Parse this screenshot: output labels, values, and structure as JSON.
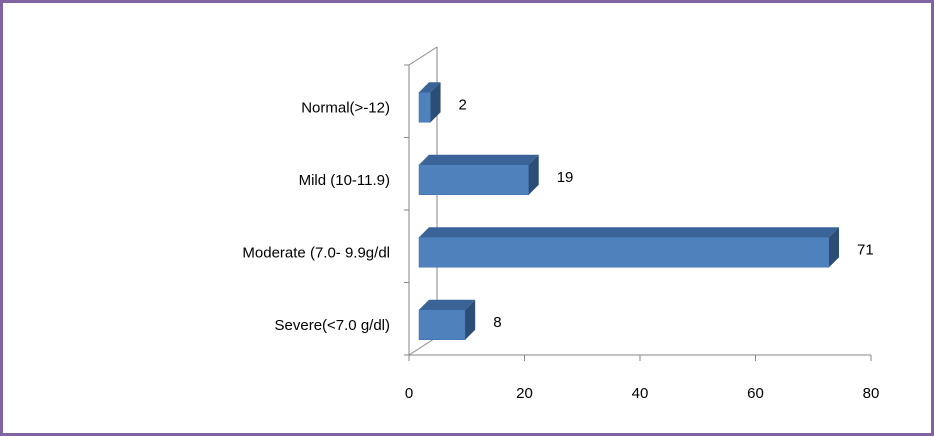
{
  "chart_data": {
    "type": "bar",
    "orientation": "horizontal",
    "three_d": true,
    "categories": [
      "Normal(>-12)",
      "Mild (10-11.9)",
      "Moderate (7.0- 9.9g/dl",
      "Severe(<7.0 g/dl)"
    ],
    "values": [
      2,
      19,
      71,
      8
    ],
    "data_labels": [
      "2",
      "19",
      "71",
      "8"
    ],
    "x_ticks": [
      "0",
      "20",
      "40",
      "60",
      "80"
    ],
    "xlim": [
      0,
      80
    ],
    "grid": false,
    "legend": "none",
    "title": "",
    "xlabel": "",
    "ylabel": ""
  },
  "colors": {
    "frame_border": "#8064A2",
    "bar_front": "#4F81BD",
    "bar_top": "#3A6497",
    "bar_side": "#2C4D75",
    "axis": "#868686"
  }
}
